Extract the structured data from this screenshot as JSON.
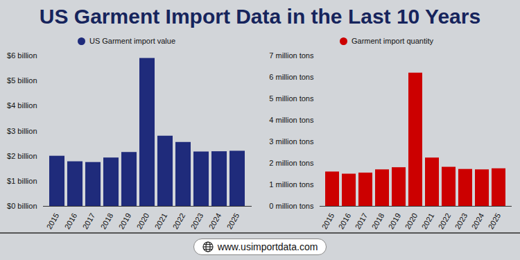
{
  "title": "US Garment Import Data in the Last 10 Years",
  "caption": "www.usimportdata.com",
  "chart_data": [
    {
      "type": "bar",
      "categories": [
        "2015",
        "2016",
        "2017",
        "2018",
        "2019",
        "2020",
        "2021",
        "2022",
        "2023",
        "2024",
        "2025"
      ],
      "series": [
        {
          "name": "US Garment import value",
          "color": "#1f2b7b",
          "values": [
            2.0,
            1.78,
            1.75,
            1.93,
            2.15,
            5.9,
            2.8,
            2.55,
            2.17,
            2.18,
            2.2
          ]
        }
      ],
      "ylim": [
        0,
        6
      ],
      "yticks": [
        {
          "value": 0,
          "label": "$0 billion"
        },
        {
          "value": 1,
          "label": "$1 billion"
        },
        {
          "value": 2,
          "label": "$2 billion"
        },
        {
          "value": 3,
          "label": "$3 billion"
        },
        {
          "value": 4,
          "label": "$4 billion"
        },
        {
          "value": 5,
          "label": "$5 billion"
        },
        {
          "value": 6,
          "label": "$6 billion"
        }
      ],
      "grid": false,
      "legend": "top"
    },
    {
      "type": "bar",
      "categories": [
        "2015",
        "2016",
        "2017",
        "2018",
        "2019",
        "2020",
        "2021",
        "2022",
        "2023",
        "2024",
        "2025"
      ],
      "series": [
        {
          "name": "Garment import quantity",
          "color": "#cc0000",
          "values": [
            1.6,
            1.5,
            1.55,
            1.7,
            1.8,
            6.2,
            2.25,
            1.82,
            1.72,
            1.7,
            1.75
          ]
        }
      ],
      "ylim": [
        0,
        7
      ],
      "yticks": [
        {
          "value": 0,
          "label": "0 million tons"
        },
        {
          "value": 1,
          "label": "1 million tons"
        },
        {
          "value": 2,
          "label": "2 million tons"
        },
        {
          "value": 3,
          "label": "3 million tons"
        },
        {
          "value": 4,
          "label": "4 million tons"
        },
        {
          "value": 5,
          "label": "5 million tons"
        },
        {
          "value": 6,
          "label": "6 million tons"
        },
        {
          "value": 7,
          "label": "7 million tons"
        }
      ],
      "grid": false,
      "legend": "top"
    }
  ]
}
